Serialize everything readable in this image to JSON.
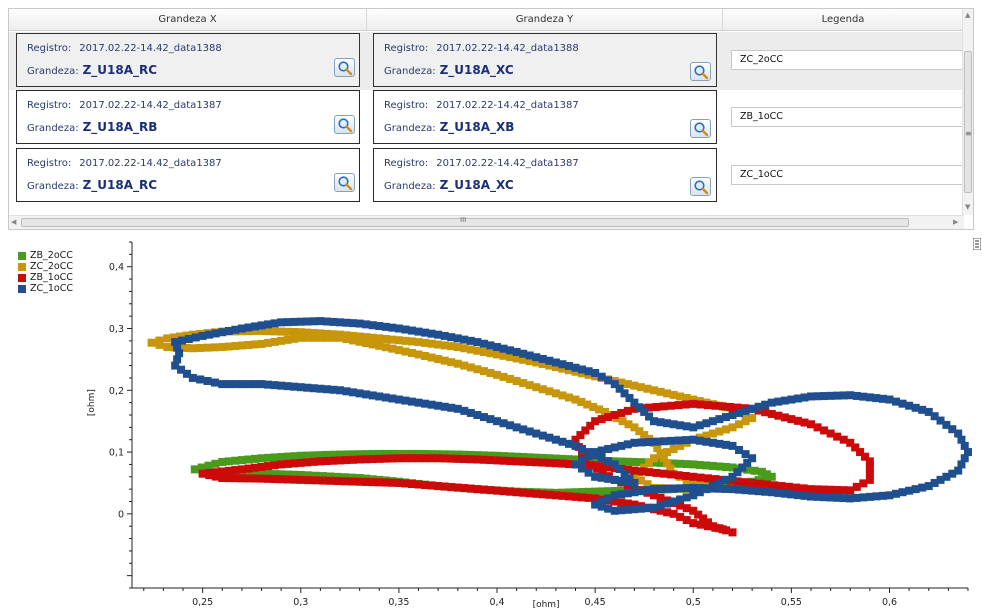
{
  "table": {
    "columns": [
      "Grandeza X",
      "Grandeza Y",
      "Legenda"
    ],
    "registro_label": "Registro:",
    "grandeza_label": "Grandeza:",
    "rows": [
      {
        "x": {
          "registro": "2017.02.22-14.42_data1388",
          "grandeza": "Z_U18A_RC"
        },
        "y": {
          "registro": "2017.02.22-14.42_data1388",
          "grandeza": "Z_U18A_XC"
        },
        "legenda": "ZC_2oCC",
        "selected": true
      },
      {
        "x": {
          "registro": "2017.02.22-14.42_data1387",
          "grandeza": "Z_U18A_RB"
        },
        "y": {
          "registro": "2017.02.22-14.42_data1387",
          "grandeza": "Z_U18A_XB"
        },
        "legenda": "ZB_1oCC",
        "selected": false
      },
      {
        "x": {
          "registro": "2017.02.22-14.42_data1387",
          "grandeza": "Z_U18A_RC"
        },
        "y": {
          "registro": "2017.02.22-14.42_data1387",
          "grandeza": "Z_U18A_XC"
        },
        "legenda": "ZC_1oCC",
        "selected": false
      }
    ],
    "hscroll_grip": "III"
  },
  "icons": {
    "lookup": "magnifier-icon",
    "scroll_up": "triangle-up-icon",
    "scroll_down": "triangle-down-icon",
    "scroll_left": "triangle-left-icon",
    "scroll_right": "triangle-right-icon",
    "grip": "grip-icon"
  },
  "chart_data": {
    "type": "scatter",
    "title": "",
    "xlabel": "[ohm]",
    "ylabel": "[ohm]",
    "xlim": [
      0.214,
      0.64
    ],
    "ylim": [
      -0.12,
      0.44
    ],
    "xticks": [
      "0,25",
      "0,3",
      "0,35",
      "0,4",
      "0,45",
      "0,5",
      "0,55",
      "0,6"
    ],
    "xtick_values": [
      0.25,
      0.3,
      0.35,
      0.4,
      0.45,
      0.5,
      0.55,
      0.6
    ],
    "yticks": [
      "0",
      "0,1",
      "0,2",
      "0,3",
      "0,4"
    ],
    "ytick_values": [
      0,
      0.1,
      0.2,
      0.3,
      0.4
    ],
    "grid": false,
    "legend_position": "top-left",
    "series": [
      {
        "name": "ZB_2oCC",
        "color": "#4a9a1c",
        "points": [
          [
            0.246,
            0.072
          ],
          [
            0.26,
            0.084
          ],
          [
            0.28,
            0.09
          ],
          [
            0.3,
            0.094
          ],
          [
            0.32,
            0.096
          ],
          [
            0.34,
            0.097
          ],
          [
            0.36,
            0.097
          ],
          [
            0.38,
            0.096
          ],
          [
            0.4,
            0.094
          ],
          [
            0.42,
            0.091
          ],
          [
            0.44,
            0.088
          ],
          [
            0.46,
            0.085
          ],
          [
            0.48,
            0.083
          ],
          [
            0.5,
            0.08
          ],
          [
            0.52,
            0.075
          ],
          [
            0.535,
            0.068
          ],
          [
            0.54,
            0.06
          ],
          [
            0.53,
            0.052
          ],
          [
            0.51,
            0.045
          ],
          [
            0.49,
            0.04
          ],
          [
            0.47,
            0.038
          ],
          [
            0.45,
            0.036
          ],
          [
            0.43,
            0.034
          ],
          [
            0.41,
            0.036
          ],
          [
            0.39,
            0.04
          ],
          [
            0.37,
            0.045
          ],
          [
            0.35,
            0.052
          ],
          [
            0.33,
            0.058
          ],
          [
            0.3,
            0.063
          ],
          [
            0.28,
            0.065
          ],
          [
            0.26,
            0.066
          ],
          [
            0.25,
            0.068
          ]
        ]
      },
      {
        "name": "ZC_2oCC",
        "color": "#c8960a",
        "points": [
          [
            0.224,
            0.277
          ],
          [
            0.232,
            0.27
          ],
          [
            0.245,
            0.268
          ],
          [
            0.26,
            0.27
          ],
          [
            0.28,
            0.275
          ],
          [
            0.3,
            0.285
          ],
          [
            0.32,
            0.285
          ],
          [
            0.34,
            0.272
          ],
          [
            0.36,
            0.258
          ],
          [
            0.38,
            0.243
          ],
          [
            0.4,
            0.225
          ],
          [
            0.42,
            0.205
          ],
          [
            0.44,
            0.185
          ],
          [
            0.455,
            0.165
          ],
          [
            0.47,
            0.14
          ],
          [
            0.48,
            0.115
          ],
          [
            0.485,
            0.09
          ],
          [
            0.49,
            0.065
          ],
          [
            0.5,
            0.05
          ],
          [
            0.51,
            0.045
          ],
          [
            0.5,
            0.04
          ],
          [
            0.48,
            0.042
          ],
          [
            0.47,
            0.06
          ],
          [
            0.48,
            0.09
          ],
          [
            0.5,
            0.12
          ],
          [
            0.52,
            0.14
          ],
          [
            0.53,
            0.155
          ],
          [
            0.52,
            0.17
          ],
          [
            0.5,
            0.185
          ],
          [
            0.48,
            0.2
          ],
          [
            0.46,
            0.215
          ],
          [
            0.44,
            0.23
          ],
          [
            0.42,
            0.245
          ],
          [
            0.4,
            0.258
          ],
          [
            0.38,
            0.27
          ],
          [
            0.36,
            0.278
          ],
          [
            0.34,
            0.284
          ],
          [
            0.32,
            0.29
          ],
          [
            0.3,
            0.294
          ],
          [
            0.28,
            0.296
          ],
          [
            0.26,
            0.295
          ],
          [
            0.245,
            0.29
          ],
          [
            0.232,
            0.284
          ]
        ]
      },
      {
        "name": "ZB_1oCC",
        "color": "#cc0a0a",
        "points": [
          [
            0.25,
            0.065
          ],
          [
            0.27,
            0.072
          ],
          [
            0.29,
            0.08
          ],
          [
            0.31,
            0.085
          ],
          [
            0.33,
            0.088
          ],
          [
            0.35,
            0.09
          ],
          [
            0.37,
            0.09
          ],
          [
            0.39,
            0.088
          ],
          [
            0.41,
            0.085
          ],
          [
            0.43,
            0.082
          ],
          [
            0.45,
            0.078
          ],
          [
            0.47,
            0.07
          ],
          [
            0.5,
            0.06
          ],
          [
            0.53,
            0.05
          ],
          [
            0.56,
            0.04
          ],
          [
            0.58,
            0.038
          ],
          [
            0.59,
            0.055
          ],
          [
            0.59,
            0.085
          ],
          [
            0.58,
            0.115
          ],
          [
            0.56,
            0.145
          ],
          [
            0.53,
            0.17
          ],
          [
            0.5,
            0.178
          ],
          [
            0.47,
            0.17
          ],
          [
            0.45,
            0.15
          ],
          [
            0.44,
            0.12
          ],
          [
            0.445,
            0.085
          ],
          [
            0.46,
            0.055
          ],
          [
            0.48,
            0.03
          ],
          [
            0.5,
            0.005
          ],
          [
            0.51,
            -0.02
          ],
          [
            0.52,
            -0.03
          ],
          [
            0.515,
            -0.025
          ],
          [
            0.5,
            -0.015
          ],
          [
            0.49,
            0.0
          ],
          [
            0.47,
            0.015
          ],
          [
            0.45,
            0.025
          ],
          [
            0.43,
            0.03
          ],
          [
            0.41,
            0.035
          ],
          [
            0.39,
            0.04
          ],
          [
            0.37,
            0.045
          ],
          [
            0.35,
            0.05
          ],
          [
            0.33,
            0.052
          ],
          [
            0.3,
            0.055
          ],
          [
            0.28,
            0.057
          ],
          [
            0.26,
            0.058
          ]
        ]
      },
      {
        "name": "ZC_1oCC",
        "color": "#1f4f8f",
        "points": [
          [
            0.236,
            0.278
          ],
          [
            0.25,
            0.288
          ],
          [
            0.27,
            0.3
          ],
          [
            0.29,
            0.31
          ],
          [
            0.31,
            0.312
          ],
          [
            0.33,
            0.308
          ],
          [
            0.35,
            0.3
          ],
          [
            0.37,
            0.29
          ],
          [
            0.39,
            0.278
          ],
          [
            0.41,
            0.262
          ],
          [
            0.43,
            0.245
          ],
          [
            0.45,
            0.228
          ],
          [
            0.46,
            0.21
          ],
          [
            0.47,
            0.18
          ],
          [
            0.48,
            0.15
          ],
          [
            0.5,
            0.14
          ],
          [
            0.52,
            0.16
          ],
          [
            0.54,
            0.18
          ],
          [
            0.56,
            0.19
          ],
          [
            0.58,
            0.192
          ],
          [
            0.6,
            0.185
          ],
          [
            0.62,
            0.165
          ],
          [
            0.635,
            0.13
          ],
          [
            0.64,
            0.1
          ],
          [
            0.635,
            0.07
          ],
          [
            0.62,
            0.045
          ],
          [
            0.6,
            0.03
          ],
          [
            0.58,
            0.025
          ],
          [
            0.56,
            0.028
          ],
          [
            0.54,
            0.035
          ],
          [
            0.52,
            0.04
          ],
          [
            0.5,
            0.042
          ],
          [
            0.48,
            0.04
          ],
          [
            0.46,
            0.03
          ],
          [
            0.45,
            0.015
          ],
          [
            0.46,
            0.005
          ],
          [
            0.48,
            0.01
          ],
          [
            0.5,
            0.03
          ],
          [
            0.52,
            0.06
          ],
          [
            0.53,
            0.09
          ],
          [
            0.52,
            0.11
          ],
          [
            0.5,
            0.12
          ],
          [
            0.47,
            0.115
          ],
          [
            0.45,
            0.1
          ],
          [
            0.44,
            0.08
          ],
          [
            0.45,
            0.06
          ],
          [
            0.47,
            0.05
          ],
          [
            0.46,
            0.08
          ],
          [
            0.44,
            0.11
          ],
          [
            0.42,
            0.13
          ],
          [
            0.4,
            0.15
          ],
          [
            0.38,
            0.17
          ],
          [
            0.36,
            0.18
          ],
          [
            0.34,
            0.19
          ],
          [
            0.32,
            0.2
          ],
          [
            0.3,
            0.205
          ],
          [
            0.28,
            0.21
          ],
          [
            0.26,
            0.21
          ],
          [
            0.245,
            0.22
          ],
          [
            0.236,
            0.24
          ],
          [
            0.238,
            0.26
          ]
        ]
      }
    ]
  }
}
